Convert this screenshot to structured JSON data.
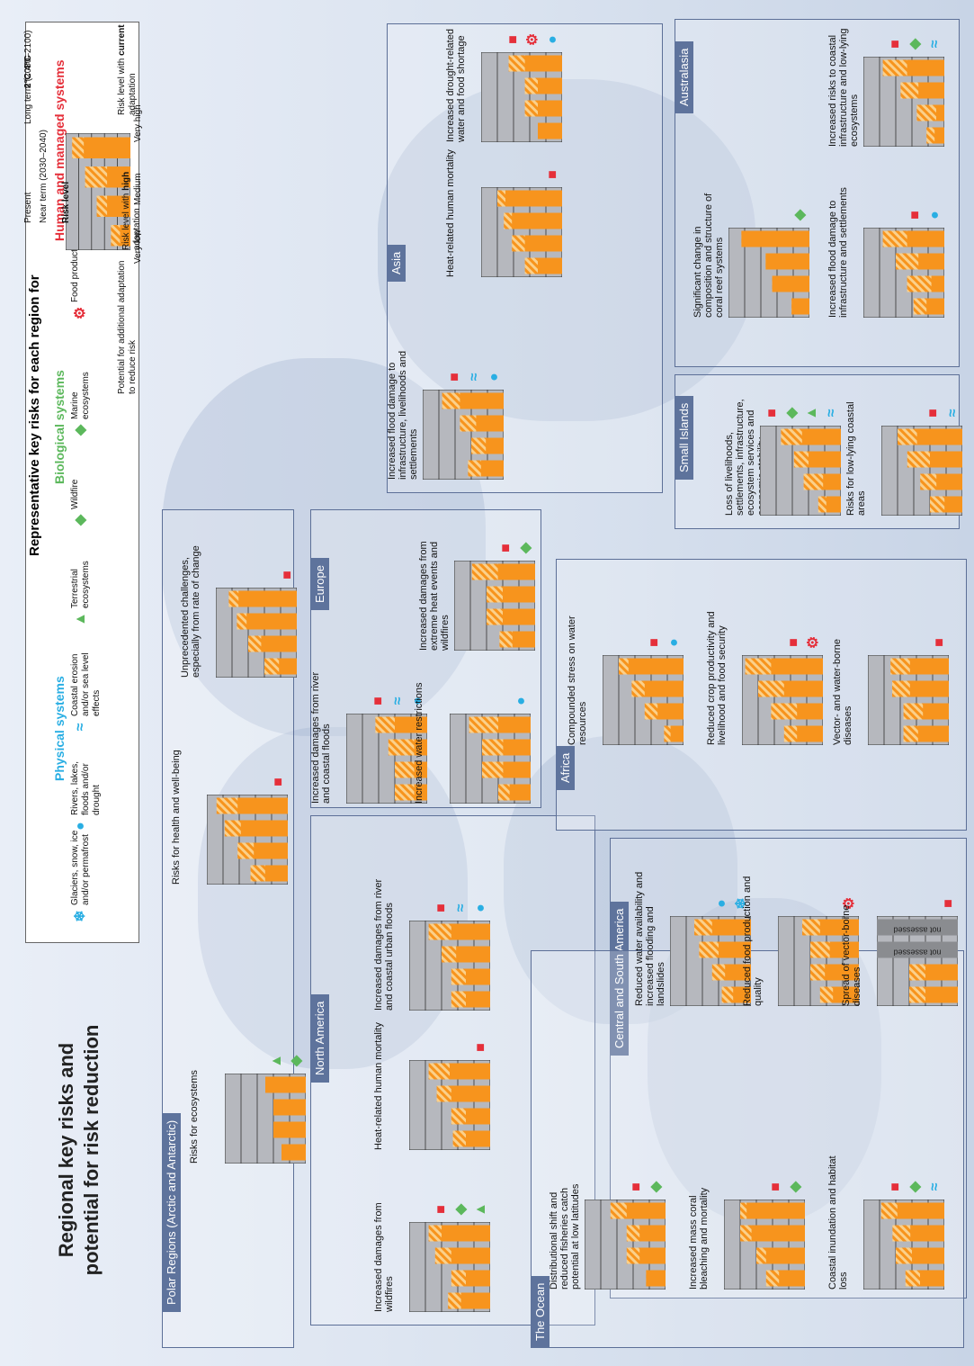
{
  "title_line1": "Regional key risks and",
  "title_line2": "potential for risk reduction",
  "legend": {
    "header": "Representative key risks for each region for",
    "physical_title": "Physical systems",
    "biological_title": "Biological systems",
    "human_title": "Human and managed systems",
    "items": {
      "glaciers": "Glaciers, snow, ice and/or permafrost",
      "rivers": "Rivers, lakes, floods and/or drought",
      "coastal": "Coastal erosion and/or sea level effects",
      "terrestrial": "Terrestrial ecosystems",
      "wildfire": "Wildfire",
      "marine": "Marine ecosystems",
      "food": "Food production",
      "livelihoods": "Livelihoods, health and/or economics"
    },
    "risk_level": "Risk level",
    "very_low": "Very low",
    "medium": "Medium",
    "very_high": "Very high",
    "present": "Present",
    "near_term": "Near term (2030–2040)",
    "long_term": "Long term (2080–2100)",
    "two_c": "2°C",
    "four_c": "4°C",
    "potential": "Potential for additional adaptation to reduce risk",
    "current_a": "Risk level with",
    "current_b": "current",
    "current_c": "adaptation",
    "high_a": "Risk level with",
    "high_b": "high",
    "high_c": "adaptation",
    "example": {
      "low": [
        0.8,
        1.8,
        1.8,
        3.6
      ],
      "high": [
        1.5,
        2.6,
        3.5,
        4.5
      ]
    }
  },
  "colors": {
    "accent": "#f7941d",
    "hatch": "#fbd08a",
    "grey": "#b6b8be",
    "phys": "#29aee3",
    "bio": "#5cb85c",
    "human": "#e52f3a",
    "tab": "#5e739c"
  },
  "regions": {
    "polar": "Polar Regions (Arctic and Antarctic)",
    "europe": "Europe",
    "asia": "Asia",
    "australasia": "Australasia",
    "north_america": "North America",
    "africa": "Africa",
    "small_islands": "Small Islands",
    "central_south_america": "Central and South America",
    "ocean": "The Ocean"
  },
  "not_assessed": "not assessed",
  "charts": [
    {
      "id": "polar-eco",
      "label": "Risks for ecosystems",
      "icons": [
        "marine",
        "terrestrial"
      ],
      "low": [
        1.5,
        2.0,
        2.0,
        2.5
      ],
      "high": [
        1.5,
        2.0,
        2.0,
        2.5
      ]
    },
    {
      "id": "polar-health",
      "label": "Risks for health and well-being",
      "icons": [
        "livelihoods"
      ],
      "low": [
        1.4,
        2.1,
        2.9,
        3.1
      ],
      "high": [
        2.3,
        3.1,
        3.9,
        4.4
      ]
    },
    {
      "id": "polar-unprec",
      "label": "Unprecedented challenges, especially from rate of change",
      "icons": [
        "livelihoods"
      ],
      "low": [
        1.1,
        2.2,
        3.1,
        3.6
      ],
      "high": [
        2.0,
        3.0,
        3.7,
        4.2
      ]
    },
    {
      "id": "eu-flood",
      "label": "Increased damages from river and coastal floods",
      "icons": [
        "rivers",
        "coastal",
        "livelihoods"
      ],
      "low": [
        0.8,
        0.8,
        0.8,
        2.0
      ],
      "high": [
        2.0,
        2.0,
        2.4,
        3.2
      ]
    },
    {
      "id": "eu-water",
      "label": "Increased water restrictions",
      "icons": [
        "rivers"
      ],
      "low": [
        1.3,
        1.7,
        1.7,
        2.0
      ],
      "high": [
        2.0,
        3.0,
        3.0,
        3.8
      ]
    },
    {
      "id": "eu-heat",
      "label": "Increased damages from extreme heat events and wildfires",
      "icons": [
        "wildfire",
        "livelihoods"
      ],
      "low": [
        1.4,
        2.0,
        2.0,
        2.3
      ],
      "high": [
        2.2,
        3.0,
        3.0,
        3.9
      ]
    },
    {
      "id": "asia-flood",
      "label": "Increased flood damage to infrastructure, livelihoods and settlements",
      "icons": [
        "rivers",
        "coastal",
        "livelihoods"
      ],
      "low": [
        1.4,
        1.1,
        1.7,
        2.7
      ],
      "high": [
        2.2,
        2.0,
        2.7,
        3.8
      ]
    },
    {
      "id": "asia-heat",
      "label": "Heat-related human mortality",
      "icons": [
        "livelihoods"
      ],
      "low": [
        1.5,
        2.3,
        3.1,
        3.5
      ],
      "high": [
        2.3,
        3.1,
        3.6,
        4.0
      ]
    },
    {
      "id": "asia-drought",
      "label": "Increased drought-related water and food shortage",
      "icons": [
        "rivers",
        "food",
        "livelihoods"
      ],
      "low": [
        1.5,
        1.5,
        1.5,
        2.3
      ],
      "high": [
        1.5,
        2.3,
        2.3,
        3.3
      ]
    },
    {
      "id": "aus-coral",
      "label": "Significant change in composition and structure of coral reef systems",
      "icons": [
        "marine"
      ],
      "low": [
        1.1,
        2.3,
        2.7,
        4.2
      ],
      "high": [
        1.1,
        2.3,
        2.7,
        4.2
      ]
    },
    {
      "id": "aus-flood",
      "label": "Increased flood damage to infrastructure and settlements",
      "icons": [
        "rivers",
        "livelihoods"
      ],
      "low": [
        1.1,
        0.8,
        1.6,
        2.3
      ],
      "high": [
        1.9,
        2.3,
        3.0,
        3.8
      ]
    },
    {
      "id": "aus-coast",
      "label": "Increased risks to coastal infrastructure and low-lying ecosystems",
      "icons": [
        "coastal",
        "marine",
        "livelihoods"
      ],
      "low": [
        0.6,
        0.5,
        1.6,
        2.3
      ],
      "high": [
        1.1,
        1.7,
        2.7,
        3.8
      ]
    },
    {
      "id": "na-fire",
      "label": "Increased damages from wildfires",
      "icons": [
        "terrestrial",
        "wildfire",
        "livelihoods"
      ],
      "low": [
        1.8,
        1.5,
        2.4,
        3.0
      ],
      "high": [
        2.6,
        2.4,
        3.4,
        3.8
      ]
    },
    {
      "id": "na-heat",
      "label": "Heat-related human mortality",
      "icons": [
        "livelihoods"
      ],
      "low": [
        1.5,
        1.5,
        2.4,
        2.5
      ],
      "high": [
        2.3,
        2.4,
        3.3,
        3.8
      ]
    },
    {
      "id": "na-flood",
      "label": "Increased damages from river and coastal urban floods",
      "icons": [
        "rivers",
        "coastal",
        "livelihoods"
      ],
      "low": [
        1.5,
        1.5,
        2.1,
        2.4
      ],
      "high": [
        2.4,
        2.4,
        3.0,
        3.8
      ]
    },
    {
      "id": "af-water",
      "label": "Compounded stress on water resources",
      "icons": [
        "rivers",
        "livelihoods"
      ],
      "low": [
        0.8,
        1.6,
        2.4,
        3.4
      ],
      "high": [
        1.2,
        2.4,
        3.2,
        4.0
      ]
    },
    {
      "id": "af-crop",
      "label": "Reduced crop productivity and livelihood and food security",
      "icons": [
        "food",
        "livelihoods"
      ],
      "low": [
        1.6,
        1.6,
        2.4,
        3.2
      ],
      "high": [
        2.4,
        3.2,
        4.0,
        4.8
      ]
    },
    {
      "id": "af-vector",
      "label": "Vector- and water-borne diseases",
      "icons": [
        "livelihoods"
      ],
      "low": [
        1.9,
        1.6,
        2.4,
        2.4
      ],
      "high": [
        2.8,
        2.8,
        3.5,
        3.6
      ]
    },
    {
      "id": "si-loss",
      "label": "Loss of livelihoods, settlements, infrastructure, ecosystem services and economic stability",
      "icons": [
        "coastal",
        "terrestrial",
        "marine",
        "livelihoods"
      ],
      "low": [
        0.9,
        1.1,
        2.0,
        2.4
      ],
      "high": [
        1.4,
        2.3,
        2.9,
        3.7
      ]
    },
    {
      "id": "si-coast",
      "label": "Risks for low-lying coastal areas",
      "icons": [
        "coastal",
        "livelihoods"
      ],
      "low": [
        1.1,
        1.6,
        2.0,
        2.8
      ],
      "high": [
        2.0,
        2.6,
        3.4,
        4.0
      ]
    },
    {
      "id": "csa-water",
      "label": "Reduced water availability and increased flooding and landslides",
      "icons": [
        "glaciers",
        "rivers"
      ],
      "low": [
        1.1,
        1.6,
        2.0,
        2.4
      ],
      "high": [
        1.8,
        2.4,
        3.2,
        3.5
      ]
    },
    {
      "id": "csa-food",
      "label": "Reduced food production and quality",
      "icons": [
        "food"
      ],
      "low": [
        1.6,
        2.1,
        1.8,
        2.4
      ],
      "high": [
        2.4,
        3.0,
        3.0,
        3.5
      ]
    },
    {
      "id": "csa-vector",
      "label": "Spread of vector-borne diseases",
      "icons": [
        "livelihoods"
      ],
      "low": [
        2.0,
        2.0,
        null,
        null
      ],
      "high": [
        3.0,
        3.0,
        null,
        null
      ]
    },
    {
      "id": "oc-fish",
      "label": "Distributional shift and reduced fisheries catch potential at low latitudes",
      "icons": [
        "marine",
        "livelihoods"
      ],
      "low": [
        1.2,
        1.6,
        1.6,
        2.4
      ],
      "high": [
        1.2,
        2.4,
        2.4,
        3.4
      ]
    },
    {
      "id": "oc-coral",
      "label": "Increased mass coral bleaching and mortality",
      "icons": [
        "marine",
        "livelihoods"
      ],
      "low": [
        1.6,
        2.4,
        3.3,
        3.6
      ],
      "high": [
        2.4,
        3.0,
        4.0,
        4.0
      ]
    },
    {
      "id": "oc-coast",
      "label": "Coastal inundation and habitat loss",
      "icons": [
        "coastal",
        "marine",
        "livelihoods"
      ],
      "low": [
        1.5,
        2.0,
        2.1,
        2.9
      ],
      "high": [
        2.4,
        3.0,
        3.2,
        3.9
      ]
    }
  ]
}
